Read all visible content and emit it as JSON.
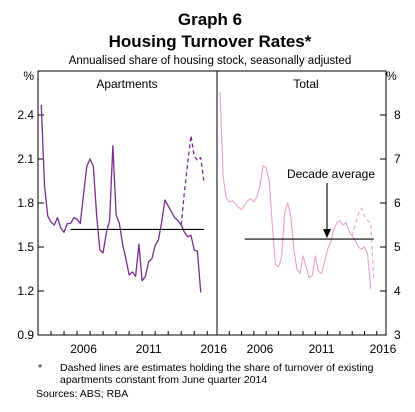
{
  "chart_data": {
    "type": "line",
    "title": "Graph 6",
    "subtitle": "Housing Turnover Rates*",
    "description": "Annualised share of housing stock, seasonally adjusted",
    "panels": [
      {
        "name": "Apartments",
        "unit": "%",
        "ylim": [
          0.9,
          2.7
        ],
        "yticks": [
          0.9,
          1.2,
          1.5,
          1.8,
          2.1,
          2.4
        ],
        "series": [
          {
            "style": "solid",
            "x": [
              2003.25,
              2003.5,
              2003.75,
              2004.0,
              2004.25,
              2004.5,
              2004.75,
              2005.0,
              2005.25,
              2005.5,
              2005.75,
              2006.0,
              2006.25,
              2006.5,
              2006.75,
              2007.0,
              2007.25,
              2007.5,
              2007.75,
              2008.0,
              2008.25,
              2008.5,
              2008.75,
              2009.0,
              2009.25,
              2009.5,
              2009.75,
              2010.0,
              2010.25,
              2010.5,
              2010.75,
              2011.0,
              2011.25,
              2011.5,
              2011.75,
              2012.0,
              2012.25,
              2012.5,
              2012.75,
              2013.0,
              2013.25,
              2013.5,
              2013.75,
              2014.0,
              2014.25,
              2014.5,
              2014.75,
              2015.0,
              2015.25,
              2015.5,
              2015.75,
              2016.0
            ],
            "values": [
              2.47,
              1.92,
              1.71,
              1.67,
              1.65,
              1.7,
              1.63,
              1.6,
              1.66,
              1.66,
              1.7,
              1.69,
              1.66,
              1.86,
              2.05,
              2.1,
              2.05,
              1.72,
              1.48,
              1.46,
              1.6,
              1.68,
              2.19,
              1.72,
              1.66,
              1.52,
              1.42,
              1.31,
              1.33,
              1.3,
              1.52,
              1.27,
              1.3,
              1.4,
              1.42,
              1.51,
              1.55,
              1.67,
              1.82,
              1.78,
              1.74,
              1.7,
              1.68,
              1.65,
              1.6,
              1.57,
              1.58,
              1.48,
              1.47,
              1.19,
              null,
              null
            ]
          },
          {
            "style": "dashed",
            "x": [
              2014.0,
              2014.25,
              2014.5,
              2014.75,
              2015.0,
              2015.25,
              2015.5,
              2015.75
            ],
            "values": [
              1.65,
              1.88,
              2.07,
              2.26,
              2.12,
              2.09,
              2.11,
              1.94
            ]
          },
          {
            "name": "Decade average",
            "style": "average",
            "x": [
              2005.5,
              2015.75
            ],
            "values": [
              1.62,
              1.62
            ]
          }
        ]
      },
      {
        "name": "Total",
        "unit": "%",
        "ylim": [
          3,
          9
        ],
        "yticks": [
          3,
          4,
          5,
          6,
          7,
          8
        ],
        "series": [
          {
            "style": "solid",
            "x": [
              2003.25,
              2003.5,
              2003.75,
              2004.0,
              2004.25,
              2004.5,
              2004.75,
              2005.0,
              2005.25,
              2005.5,
              2005.75,
              2006.0,
              2006.25,
              2006.5,
              2006.75,
              2007.0,
              2007.25,
              2007.5,
              2007.75,
              2008.0,
              2008.25,
              2008.5,
              2008.75,
              2009.0,
              2009.25,
              2009.5,
              2009.75,
              2010.0,
              2010.25,
              2010.5,
              2010.75,
              2011.0,
              2011.25,
              2011.5,
              2011.75,
              2012.0,
              2012.25,
              2012.5,
              2012.75,
              2013.0,
              2013.25,
              2013.5,
              2013.75,
              2014.0,
              2014.25,
              2014.5,
              2014.75,
              2015.0,
              2015.25,
              2015.5,
              2015.75,
              2016.0
            ],
            "values": [
              8.52,
              6.6,
              6.12,
              6.02,
              6.05,
              5.98,
              5.9,
              5.85,
              5.95,
              6.05,
              6.1,
              6.02,
              6.15,
              6.4,
              6.85,
              6.8,
              6.5,
              5.5,
              4.6,
              4.55,
              4.75,
              5.75,
              6.0,
              5.7,
              4.95,
              4.5,
              4.4,
              4.8,
              4.55,
              4.3,
              4.35,
              4.8,
              4.45,
              4.4,
              4.65,
              4.95,
              5.1,
              5.4,
              5.55,
              5.6,
              5.5,
              5.55,
              5.35,
              5.25,
              5.15,
              5.0,
              4.95,
              5.0,
              4.85,
              4.05,
              null,
              null
            ]
          },
          {
            "style": "dashed",
            "x": [
              2014.0,
              2014.25,
              2014.5,
              2014.75,
              2015.0,
              2015.25,
              2015.5,
              2015.75
            ],
            "values": [
              5.25,
              5.5,
              5.75,
              5.88,
              5.7,
              5.6,
              5.55,
              4.3
            ]
          },
          {
            "name": "Decade average",
            "style": "average",
            "x": [
              2005.25,
              2015.75
            ],
            "values": [
              5.18,
              5.18
            ]
          }
        ]
      }
    ],
    "xlim": [
      2003,
      2016.75
    ],
    "xticks": [
      "2006",
      "2011",
      "2016"
    ],
    "annotation": "Decade average",
    "colors": {
      "apartments": "#7a2c8f",
      "total": "#e6a3cf",
      "average": "#000000"
    },
    "footnote_marker": "*",
    "footnote": "Dashed lines are estimates holding the share of turnover of existing apartments constant from June quarter 2014",
    "source": "Sources: ABS; RBA"
  }
}
